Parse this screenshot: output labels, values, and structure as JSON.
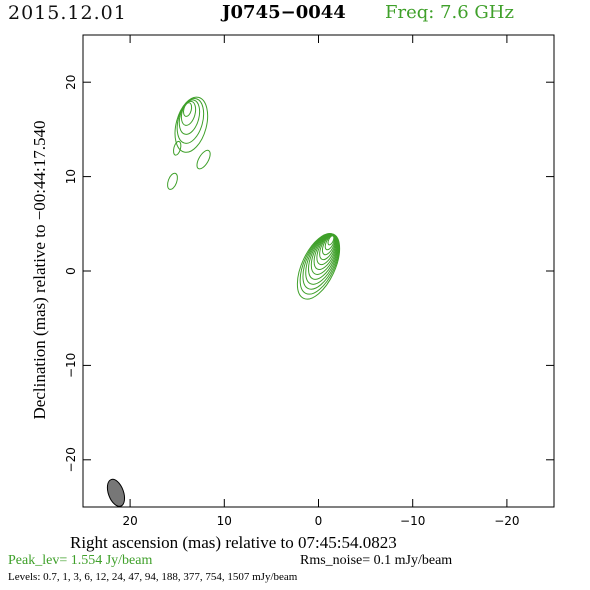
{
  "header": {
    "date": "2015.12.01",
    "source": "J0745−0044",
    "frequency": "Freq: 7.6 GHz"
  },
  "footer": {
    "peak": "Peak_lev=  1.554 Jy/beam",
    "rms": "Rms_noise=  0.1 mJy/beam",
    "levels": "Levels: 0.7,   1,   3,   6,  12,  24,  47,  94, 188, 377, 754, 1507 mJy/beam"
  },
  "chart_data": {
    "type": "contour",
    "xlabel": "Right ascension (mas) relative to 07:45:54.0823",
    "ylabel": "Declination (mas) relative to −00:44:17.540",
    "xlim": [
      25,
      -25
    ],
    "ylim": [
      -25,
      25
    ],
    "xticks": [
      20,
      10,
      0,
      -10,
      -20
    ],
    "xtick_labels": [
      "20",
      "10",
      "0",
      "−10",
      "−20"
    ],
    "yticks": [
      20,
      10,
      0,
      -10,
      -20
    ],
    "ytick_labels": [
      "20",
      "10",
      "0",
      "−10",
      "−20"
    ],
    "contour_color": "#3fa02a",
    "beam": {
      "x": 21.5,
      "y": -23.5,
      "major_mas": 3.0,
      "minor_mas": 1.6,
      "pa_deg": -20,
      "color": "#777777"
    },
    "components": [
      {
        "name": "core",
        "x": 0.0,
        "y": 0.5,
        "major_mas": 7.5,
        "minor_mas": 3.5,
        "pa_deg": 25,
        "dx_per_level": -0.12,
        "dy_per_level": 0.25,
        "levels_shown": 12
      },
      {
        "name": "jet-knot-1",
        "x": 13.5,
        "y": 15.5,
        "major_mas": 6.0,
        "minor_mas": 3.2,
        "pa_deg": 15,
        "dx_per_level": 0.1,
        "dy_per_level": 0.4,
        "levels_shown": 5
      },
      {
        "name": "jet-knot-2",
        "x": 15.5,
        "y": 9.5,
        "major_mas": 1.8,
        "minor_mas": 0.9,
        "pa_deg": 20,
        "dx_per_level": 0,
        "dy_per_level": 0,
        "levels_shown": 1
      },
      {
        "name": "jet-knot-3",
        "x": 15.0,
        "y": 13.0,
        "major_mas": 1.5,
        "minor_mas": 0.7,
        "pa_deg": 15,
        "dx_per_level": 0,
        "dy_per_level": 0,
        "levels_shown": 1
      },
      {
        "name": "jet-tail",
        "x": 12.2,
        "y": 11.8,
        "major_mas": 2.2,
        "minor_mas": 1.0,
        "pa_deg": 30,
        "dx_per_level": 0,
        "dy_per_level": 0,
        "levels_shown": 1
      }
    ]
  }
}
